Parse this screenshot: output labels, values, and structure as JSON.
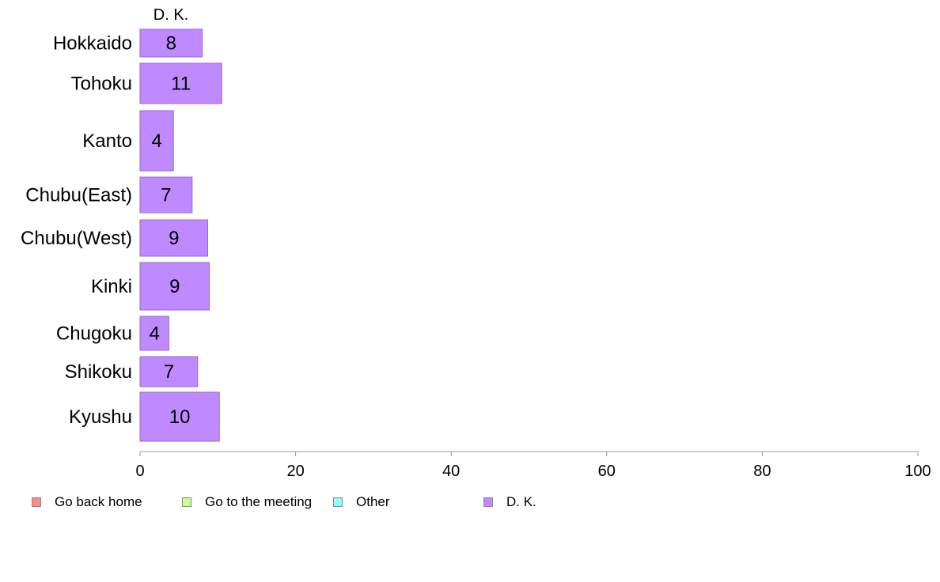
{
  "chart_data": {
    "type": "bar",
    "orientation": "horizontal",
    "stacked": true,
    "column_header": "D. K.",
    "categories": [
      "Hokkaido",
      "Tohoku",
      "Kanto",
      "Chubu(East)",
      "Chubu(West)",
      "Kinki",
      "Chugoku",
      "Shikoku",
      "Kyushu"
    ],
    "series": [
      {
        "name": "Go back home",
        "color": "#ff8a8a",
        "values": [
          null,
          null,
          null,
          null,
          null,
          null,
          null,
          null,
          null
        ]
      },
      {
        "name": "Go to the meeting",
        "color": "#ccff8a",
        "values": [
          null,
          null,
          null,
          null,
          null,
          null,
          null,
          null,
          null
        ]
      },
      {
        "name": "Other",
        "color": "#8affff",
        "values": [
          null,
          null,
          null,
          null,
          null,
          null,
          null,
          null,
          null
        ]
      },
      {
        "name": "D. K.",
        "color": "#bf8aff",
        "values": [
          8,
          10.5,
          4.3,
          6.7,
          8.7,
          8.9,
          3.7,
          7.4,
          10.2
        ],
        "labels": [
          "8",
          "11",
          "4",
          "7",
          "9",
          "9",
          "4",
          "7",
          "10"
        ]
      }
    ],
    "xlim": [
      0,
      100
    ],
    "xticks": [
      "0",
      "20",
      "40",
      "60",
      "80",
      "100"
    ],
    "legend": [
      "Go back home",
      "Go to the meeting",
      "Other",
      "D. K."
    ],
    "legend_position": "bottom",
    "grid": false
  }
}
